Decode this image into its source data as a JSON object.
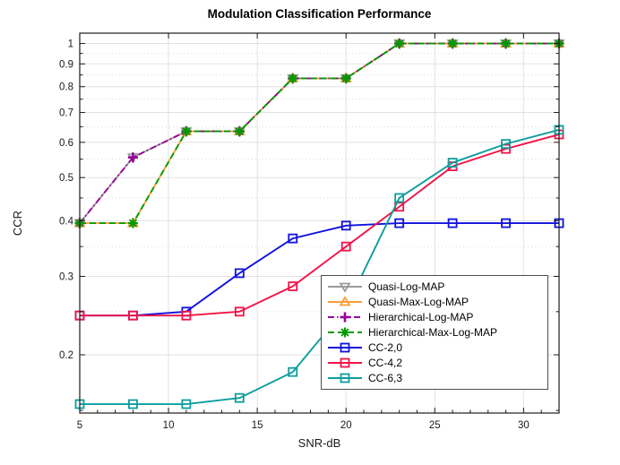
{
  "chart_data": {
    "type": "line",
    "title": "Modulation Classification Performance",
    "xlabel": "SNR-dB",
    "ylabel": "CCR",
    "yscale": "log",
    "xlim": [
      5,
      32
    ],
    "ylim": [
      0.148,
      1.055
    ],
    "xticks": [
      5,
      10,
      15,
      20,
      25,
      30
    ],
    "yticks": [
      0.2,
      0.3,
      0.4,
      0.5,
      0.6,
      0.7,
      0.8,
      0.9,
      1
    ],
    "y_minor_gridlines": [
      0.15,
      0.25,
      0.35,
      0.45,
      0.55,
      0.65,
      0.75,
      0.85,
      0.95
    ],
    "grid": true,
    "legend_position": "inside-lower-right",
    "x": [
      5,
      8,
      11,
      14,
      17,
      20,
      23,
      26,
      29,
      32
    ],
    "series": [
      {
        "name": "Quasi-Log-MAP",
        "color": "#9B9B9B",
        "line": "solid",
        "marker": "triangle-down",
        "values": [
          0.395,
          0.555,
          0.635,
          0.635,
          0.835,
          0.835,
          1.0,
          1.0,
          1.0,
          1.0
        ]
      },
      {
        "name": "Quasi-Max-Log-MAP",
        "color": "#F9A03C",
        "line": "solid",
        "marker": "triangle-up",
        "values": [
          0.395,
          0.395,
          0.635,
          0.635,
          0.835,
          0.835,
          1.0,
          1.0,
          1.0,
          1.0
        ]
      },
      {
        "name": "Hierarchical-Log-MAP",
        "color": "#990099",
        "line": "dash-dot",
        "marker": "plus",
        "values": [
          0.395,
          0.555,
          0.635,
          0.635,
          0.835,
          0.835,
          1.0,
          1.0,
          1.0,
          1.0
        ]
      },
      {
        "name": "Hierarchical-Max-Log-MAP",
        "color": "#009B00",
        "line": "dashed",
        "marker": "asterisk",
        "values": [
          0.395,
          0.395,
          0.635,
          0.635,
          0.835,
          0.835,
          1.0,
          1.0,
          1.0,
          1.0
        ]
      },
      {
        "name": "CC-2,0",
        "color": "#1111DE",
        "line": "solid",
        "marker": "square",
        "values": [
          0.245,
          0.245,
          0.25,
          0.305,
          0.365,
          0.39,
          0.395,
          0.395,
          0.395,
          0.395
        ]
      },
      {
        "name": "CC-4,2",
        "color": "#F01447",
        "line": "solid",
        "marker": "square",
        "values": [
          0.245,
          0.245,
          0.245,
          0.25,
          0.285,
          0.35,
          0.43,
          0.53,
          0.58,
          0.625
        ]
      },
      {
        "name": "CC-6,3",
        "color": "#0E9D9D",
        "line": "solid",
        "marker": "square",
        "values": [
          0.155,
          0.155,
          0.155,
          0.16,
          0.183,
          0.255,
          0.45,
          0.54,
          0.595,
          0.64
        ]
      }
    ],
    "colors": {
      "grid_major": "#E2E2E2",
      "grid_minor": "#DADADA",
      "axis": "#1a1a1a",
      "background": "#ffffff"
    }
  }
}
